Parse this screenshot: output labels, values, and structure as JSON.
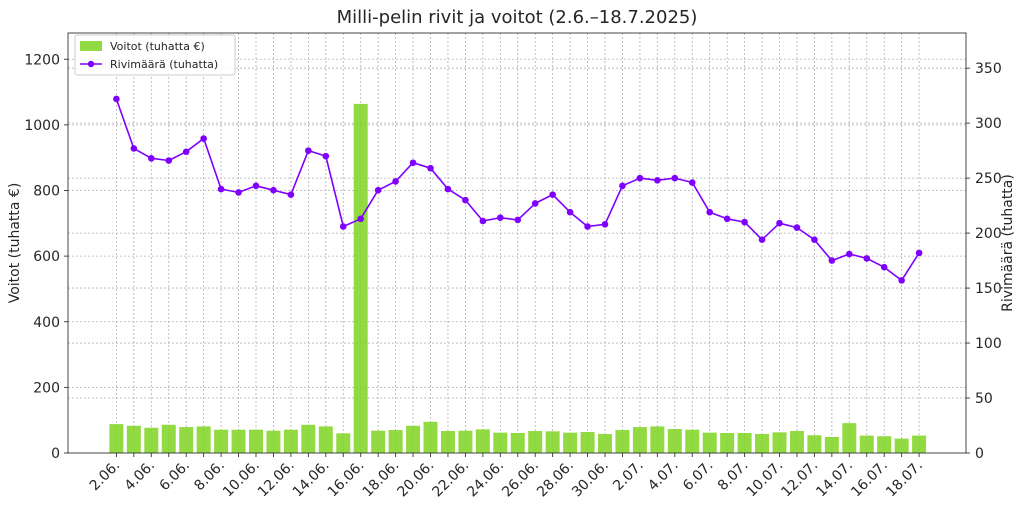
{
  "chart_data": {
    "type": "bar+line",
    "title": "Milli-pelin rivit ja voitot (2.6.–18.7.2025)",
    "xlabel": "",
    "ylabel": "Voitot (tuhatta €)",
    "y2label": "Rivimäärä (tuhatta)",
    "ylim": [
      0,
      1280
    ],
    "y2lim": [
      0,
      382
    ],
    "yticks": [
      0,
      200,
      400,
      600,
      800,
      1000,
      1200
    ],
    "y2ticks": [
      0,
      50,
      100,
      150,
      200,
      250,
      300,
      350
    ],
    "grid": true,
    "legend_position": "top-left",
    "x_tick_labels": [
      "2.06.",
      "4.06.",
      "6.06.",
      "8.06.",
      "10.06.",
      "12.06.",
      "14.06.",
      "16.06.",
      "18.06.",
      "20.06.",
      "22.06.",
      "24.06.",
      "26.06.",
      "28.06.",
      "30.06.",
      "2.07.",
      "4.07.",
      "6.07.",
      "8.07.",
      "10.07.",
      "12.07.",
      "14.07.",
      "16.07.",
      "18.07."
    ],
    "categories": [
      "2.06.",
      "3.06.",
      "4.06.",
      "5.06.",
      "6.06.",
      "7.06.",
      "8.06.",
      "9.06.",
      "10.06.",
      "11.06.",
      "12.06.",
      "13.06.",
      "14.06.",
      "15.06.",
      "16.06.",
      "17.06.",
      "18.06.",
      "19.06.",
      "20.06.",
      "21.06.",
      "22.06.",
      "23.06.",
      "24.06.",
      "25.06.",
      "26.06.",
      "27.06.",
      "28.06.",
      "29.06.",
      "30.06.",
      "1.07.",
      "2.07.",
      "3.07.",
      "4.07.",
      "5.07.",
      "6.07.",
      "7.07.",
      "8.07.",
      "9.07.",
      "10.07.",
      "11.07.",
      "12.07.",
      "13.07.",
      "14.07.",
      "15.07.",
      "16.07.",
      "17.07.",
      "18.07."
    ],
    "series": [
      {
        "name": "Voitot (tuhatta €)",
        "kind": "bar",
        "axis": "left",
        "color": "#7ed321",
        "values": [
          88,
          83,
          77,
          86,
          79,
          81,
          71,
          71,
          71,
          68,
          71,
          86,
          81,
          60,
          1064,
          68,
          70,
          83,
          95,
          67,
          68,
          72,
          62,
          61,
          67,
          66,
          62,
          64,
          58,
          70,
          79,
          81,
          73,
          71,
          62,
          61,
          61,
          58,
          63,
          67,
          54,
          49,
          91,
          53,
          51,
          44,
          53
        ]
      },
      {
        "name": "Rivimäärä (tuhatta)",
        "kind": "line",
        "axis": "right",
        "color": "#7f00ff",
        "values": [
          322,
          277,
          268,
          266,
          274,
          286,
          240,
          237,
          243,
          239,
          235,
          275,
          270,
          206,
          213,
          239,
          247,
          264,
          259,
          240,
          230,
          211,
          214,
          212,
          227,
          235,
          219,
          206,
          208,
          243,
          250,
          248,
          250,
          246,
          219,
          213,
          210,
          194,
          209,
          205,
          194,
          175,
          181,
          177,
          169,
          157,
          182
        ]
      }
    ]
  }
}
